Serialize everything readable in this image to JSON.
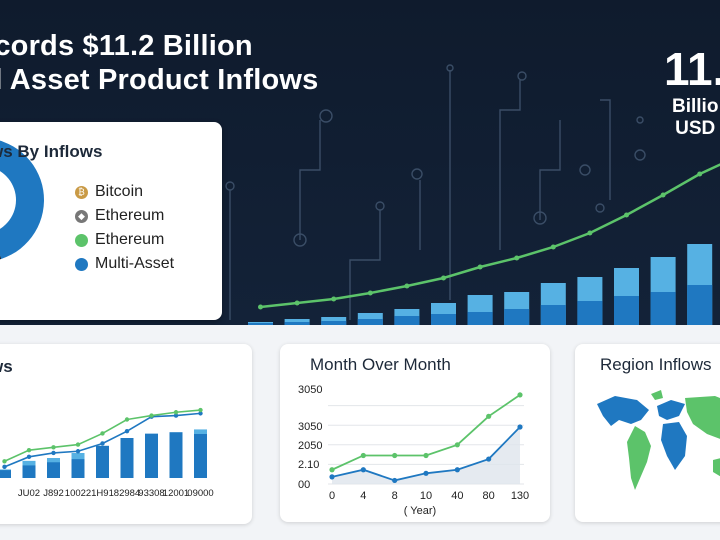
{
  "hero": {
    "title_line1": "ecords $11.2 Billion",
    "title_line2": "al Asset Product Inflows",
    "big_number": "11.",
    "big_unit_line1": "Billio",
    "big_unit_line2": "USD"
  },
  "colors": {
    "navy": "#0f1b2d",
    "dark_blue": "#1f78c1",
    "light_blue": "#56b1e3",
    "green": "#5cc36a",
    "bitcoin": "#c99a46",
    "ethereum_gray": "#777777"
  },
  "donut_card": {
    "title": "ws By Inflows",
    "legend": [
      {
        "label": "Bitcoin",
        "color": "#c99a46",
        "icon": "bitcoin-icon",
        "glyph": "₿"
      },
      {
        "label": "Ethereum",
        "color": "#777777",
        "icon": "ethereum-icon",
        "glyph": "◆"
      },
      {
        "label": "Ethereum",
        "color": "#5cc36a",
        "icon": "",
        "glyph": ""
      },
      {
        "label": "Multi-Asset",
        "color": "#1f78c1",
        "icon": "",
        "glyph": ""
      }
    ]
  },
  "card_flows": {
    "title": "ws"
  },
  "card_mom": {
    "title": "Month Over Month"
  },
  "card_region": {
    "title": "Region Inflows"
  },
  "chart_data": [
    {
      "type": "bar",
      "id": "hero-bars",
      "title": "",
      "series": [
        {
          "name": "",
          "values": [
            3,
            6,
            8,
            12,
            16,
            22,
            30,
            33,
            42,
            48,
            57,
            68,
            81,
            94
          ]
        },
        {
          "name": "",
          "values": [
            2,
            3,
            4,
            6,
            9,
            11,
            13,
            16,
            20,
            24,
            29,
            33,
            40,
            45
          ]
        }
      ],
      "trend_line": [
        10,
        14,
        18,
        24,
        31,
        39,
        50,
        59,
        70,
        84,
        102,
        122,
        143,
        160
      ],
      "ylim": [
        0,
        190
      ]
    },
    {
      "type": "pie",
      "id": "inflow-donut",
      "slices": [
        {
          "label": "Multi-Asset",
          "value": 45
        },
        {
          "label": "Bitcoin",
          "value": 40
        },
        {
          "label": "Ethereum",
          "value": 15
        }
      ]
    },
    {
      "type": "bar",
      "id": "flows-mini",
      "categories": [
        "",
        "JU02",
        "J892",
        "10022",
        "1H91",
        "82984",
        "93308",
        "12001",
        "09000"
      ],
      "series": [
        {
          "name": "",
          "values": [
            12,
            24,
            28,
            35,
            45,
            56,
            62,
            64,
            68
          ]
        },
        {
          "name": "",
          "values": [
            5,
            8,
            10,
            12,
            22,
            30,
            34,
            30,
            28
          ]
        }
      ],
      "lines": [
        [
          20,
          38,
          45,
          48,
          62,
          84,
          110,
          112,
          116
        ],
        [
          30,
          50,
          55,
          60,
          80,
          105,
          112,
          118,
          122
        ]
      ],
      "ylim": [
        0,
        140
      ]
    },
    {
      "type": "line",
      "id": "month-over-month",
      "title": "Month Over Month",
      "x": [
        "0",
        "4",
        "8",
        "10",
        "40",
        "80",
        "130"
      ],
      "xlabel": "( Year)",
      "y_ticks": [
        "00",
        "2.10",
        "2050",
        "3050",
        "3050"
      ],
      "series": [
        {
          "name": "",
          "values": [
            0.4,
            0.8,
            0.8,
            0.8,
            1.1,
            1.9,
            2.5
          ]
        },
        {
          "name": "",
          "values": [
            0.2,
            0.4,
            0.1,
            0.3,
            0.4,
            0.7,
            1.6
          ]
        }
      ],
      "ylim": [
        0,
        2.75
      ]
    }
  ]
}
